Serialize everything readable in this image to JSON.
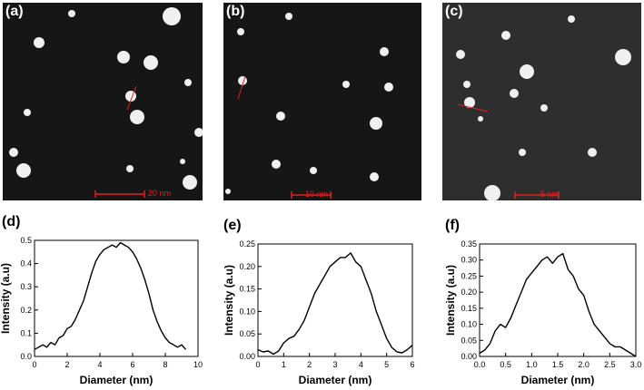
{
  "images": [
    {
      "label": "(a)",
      "scale_bar": "20 nm"
    },
    {
      "label": "(b)",
      "scale_bar": "10 nm"
    },
    {
      "label": "(c)",
      "scale_bar": "5 nm"
    }
  ],
  "plot_labels": [
    "(d)",
    "(e)",
    "(f)"
  ],
  "chart_data": [
    {
      "type": "line",
      "panel": "(d)",
      "xlabel": "Diameter (nm)",
      "ylabel": "Intensity (a.u)",
      "xlim": [
        0,
        10
      ],
      "ylim": [
        0,
        0.5
      ],
      "xticks": [
        "0",
        "2",
        "4",
        "6",
        "8",
        "10"
      ],
      "yticks": [
        "0.0",
        "0.1",
        "0.2",
        "0.3",
        "0.4",
        "0.5"
      ],
      "x": [
        0,
        0.25,
        0.5,
        0.75,
        1.0,
        1.25,
        1.5,
        1.75,
        2.0,
        2.25,
        2.5,
        2.75,
        3.0,
        3.25,
        3.5,
        3.75,
        4.0,
        4.25,
        4.5,
        4.75,
        5.0,
        5.25,
        5.5,
        5.75,
        6.0,
        6.25,
        6.5,
        6.75,
        7.0,
        7.25,
        7.5,
        7.75,
        8.0,
        8.25,
        8.5,
        8.75,
        9.0,
        9.25
      ],
      "y": [
        0.03,
        0.04,
        0.05,
        0.04,
        0.06,
        0.05,
        0.08,
        0.09,
        0.12,
        0.13,
        0.16,
        0.2,
        0.24,
        0.3,
        0.36,
        0.41,
        0.44,
        0.46,
        0.47,
        0.48,
        0.47,
        0.49,
        0.48,
        0.47,
        0.45,
        0.42,
        0.38,
        0.33,
        0.27,
        0.2,
        0.15,
        0.11,
        0.08,
        0.06,
        0.05,
        0.04,
        0.05,
        0.03
      ]
    },
    {
      "type": "line",
      "panel": "(e)",
      "xlabel": "Diameter (nm)",
      "ylabel": "Intensity (a.u)",
      "xlim": [
        0,
        6
      ],
      "ylim": [
        0,
        0.25
      ],
      "xticks": [
        "0",
        "1",
        "2",
        "3",
        "4",
        "5",
        "6"
      ],
      "yticks": [
        "0.00",
        "0.05",
        "0.10",
        "0.15",
        "0.20",
        "0.25"
      ],
      "x": [
        0,
        0.2,
        0.4,
        0.6,
        0.8,
        1.0,
        1.2,
        1.4,
        1.6,
        1.8,
        2.0,
        2.2,
        2.4,
        2.6,
        2.8,
        3.0,
        3.2,
        3.4,
        3.6,
        3.8,
        4.0,
        4.2,
        4.4,
        4.6,
        4.8,
        5.0,
        5.2,
        5.4,
        5.6,
        5.8,
        6.0
      ],
      "y": [
        0.015,
        0.01,
        0.012,
        0.005,
        0.012,
        0.03,
        0.04,
        0.045,
        0.06,
        0.08,
        0.11,
        0.14,
        0.16,
        0.18,
        0.2,
        0.21,
        0.22,
        0.22,
        0.23,
        0.21,
        0.2,
        0.17,
        0.14,
        0.1,
        0.07,
        0.04,
        0.02,
        0.01,
        0.008,
        0.015,
        0.025
      ]
    },
    {
      "type": "line",
      "panel": "(f)",
      "xlabel": "Diameter (nm)",
      "ylabel": "Intensity (a.u)",
      "xlim": [
        0,
        3.0
      ],
      "ylim": [
        0,
        0.35
      ],
      "xticks": [
        "0.0",
        "0.5",
        "1.0",
        "1.5",
        "2.0",
        "2.5",
        "3.0"
      ],
      "yticks": [
        "0.00",
        "0.05",
        "0.10",
        "0.15",
        "0.20",
        "0.25",
        "0.30",
        "0.35"
      ],
      "x": [
        0.0,
        0.1,
        0.2,
        0.3,
        0.4,
        0.5,
        0.6,
        0.7,
        0.8,
        0.9,
        1.0,
        1.1,
        1.2,
        1.3,
        1.4,
        1.5,
        1.6,
        1.7,
        1.8,
        1.9,
        2.0,
        2.1,
        2.2,
        2.3,
        2.4,
        2.5,
        2.6,
        2.7,
        2.8,
        2.9,
        3.0
      ],
      "y": [
        0.01,
        0.02,
        0.04,
        0.08,
        0.1,
        0.09,
        0.12,
        0.16,
        0.2,
        0.24,
        0.26,
        0.28,
        0.3,
        0.31,
        0.29,
        0.31,
        0.32,
        0.27,
        0.25,
        0.21,
        0.19,
        0.14,
        0.1,
        0.08,
        0.06,
        0.04,
        0.03,
        0.03,
        0.02,
        0.01,
        0.0
      ]
    }
  ]
}
